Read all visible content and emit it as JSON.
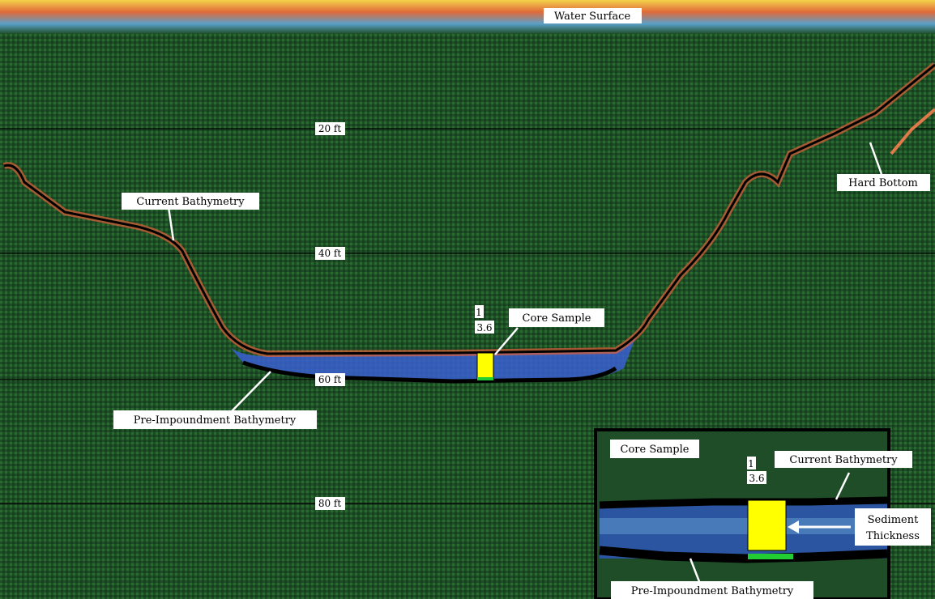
{
  "labels": {
    "water_surface": "Water Surface",
    "current_bathymetry": "Current Bathymetry",
    "hard_bottom": "Hard Bottom",
    "core_sample": "Core Sample",
    "pre_impoundment": "Pre-Impoundment Bathymetry"
  },
  "depth_lines": [
    {
      "label": "20 ft"
    },
    {
      "label": "40 ft"
    },
    {
      "label": "60 ft"
    },
    {
      "label": "80 ft"
    }
  ],
  "core": {
    "id": "1",
    "value": "3.6"
  },
  "inset": {
    "title": "Core Sample",
    "current_bathymetry": "Current Bathymetry",
    "sediment_line1": "Sediment",
    "sediment_line2": "Thickness",
    "pre_impoundment": "Pre-Impoundment Bathymetry",
    "core_id": "1",
    "core_value": "3.6"
  },
  "colors": {
    "water_background": "#1d4a25",
    "current_bottom_line": "#000000",
    "core_marker": "#ffff00",
    "sediment_blue": "#3a5fd0",
    "surface_noise": "#f2b23a"
  }
}
